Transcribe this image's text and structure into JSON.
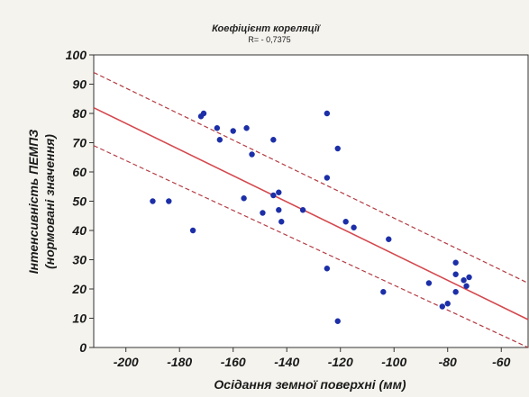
{
  "chart_data": {
    "type": "scatter",
    "title": "Коефіцієнт кореляції",
    "subtitle": "R= - 0,7375",
    "xlabel": "Осідання земної поверхні (мм)",
    "ylabel_line1": "Інтенсивність ПЕМПЗ",
    "ylabel_line2": "(нормовані значення)",
    "xlim": [
      -212,
      -50
    ],
    "ylim": [
      0,
      100
    ],
    "xticks": [
      -200,
      -180,
      -160,
      -140,
      -120,
      -100,
      -80,
      -60
    ],
    "yticks": [
      0,
      10,
      20,
      30,
      40,
      50,
      60,
      70,
      80,
      90,
      100
    ],
    "grid": false,
    "points": [
      {
        "x": -190,
        "y": 50
      },
      {
        "x": -184,
        "y": 50
      },
      {
        "x": -175,
        "y": 40
      },
      {
        "x": -172,
        "y": 79
      },
      {
        "x": -171,
        "y": 80
      },
      {
        "x": -166,
        "y": 75
      },
      {
        "x": -165,
        "y": 71
      },
      {
        "x": -160,
        "y": 74
      },
      {
        "x": -156,
        "y": 51
      },
      {
        "x": -155,
        "y": 75
      },
      {
        "x": -153,
        "y": 66
      },
      {
        "x": -149,
        "y": 46
      },
      {
        "x": -145,
        "y": 71
      },
      {
        "x": -145,
        "y": 52
      },
      {
        "x": -143,
        "y": 53
      },
      {
        "x": -143,
        "y": 47
      },
      {
        "x": -142,
        "y": 43
      },
      {
        "x": -134,
        "y": 47
      },
      {
        "x": -125,
        "y": 80
      },
      {
        "x": -125,
        "y": 58
      },
      {
        "x": -125,
        "y": 27
      },
      {
        "x": -121,
        "y": 68
      },
      {
        "x": -121,
        "y": 9
      },
      {
        "x": -118,
        "y": 43
      },
      {
        "x": -115,
        "y": 41
      },
      {
        "x": -104,
        "y": 19
      },
      {
        "x": -102,
        "y": 37
      },
      {
        "x": -87,
        "y": 22
      },
      {
        "x": -82,
        "y": 14
      },
      {
        "x": -80,
        "y": 15
      },
      {
        "x": -77,
        "y": 29
      },
      {
        "x": -77,
        "y": 25
      },
      {
        "x": -77,
        "y": 19
      },
      {
        "x": -74,
        "y": 23
      },
      {
        "x": -73,
        "y": 21
      },
      {
        "x": -72,
        "y": 24
      }
    ],
    "regression": {
      "slope": -0.4469,
      "intercept": -12.8
    },
    "confidence_band": {
      "lower_at_xlim": [
        69,
        0
      ],
      "upper_at_xlim": [
        94,
        22
      ]
    },
    "colors": {
      "points": "#1c2fa8",
      "fit_line": "#d4484d",
      "band": "#b33b42"
    }
  }
}
